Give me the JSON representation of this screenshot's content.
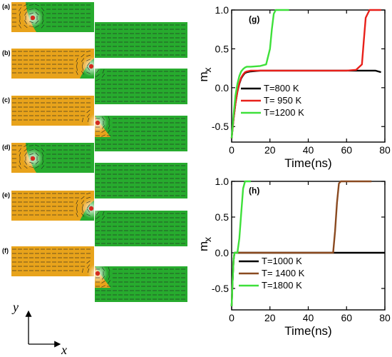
{
  "panels": [
    {
      "label": "(a)",
      "domain_wall": "left"
    },
    {
      "label": "(b)",
      "domain_wall": "step"
    },
    {
      "label": "(c)",
      "domain_wall": "lower"
    },
    {
      "label": "(d)",
      "domain_wall": "left"
    },
    {
      "label": "(e)",
      "domain_wall": "step"
    },
    {
      "label": "(f)",
      "domain_wall": "lower"
    }
  ],
  "coord_axes": {
    "x": "x",
    "y": "y"
  },
  "colors": {
    "left_domain": "#e8a31b",
    "right_domain": "#27ab2e",
    "core": "#d42a1f"
  },
  "chart_data": [
    {
      "type": "line",
      "panel_label": "(g)",
      "xlabel": "Time(ns)",
      "ylabel": "m",
      "ylabel_sub": "x",
      "xlim": [
        0,
        80
      ],
      "ylim": [
        -0.7,
        1.0
      ],
      "xticks": [
        0,
        20,
        40,
        60,
        80
      ],
      "yticks": [
        -0.5,
        0.0,
        0.5,
        1.0
      ],
      "ytick_labels": [
        "-0.5",
        "0.0",
        "0.5",
        "1.0"
      ],
      "legend": "bottom-left",
      "series": [
        {
          "name": "T=800 K",
          "color": "#000000",
          "x": [
            0,
            1,
            2,
            3,
            4,
            5,
            6,
            7,
            8,
            10,
            15,
            20,
            30,
            40,
            50,
            60,
            65,
            70,
            75,
            78
          ],
          "y": [
            -0.65,
            -0.4,
            -0.2,
            -0.05,
            0.05,
            0.12,
            0.16,
            0.19,
            0.2,
            0.21,
            0.22,
            0.22,
            0.22,
            0.22,
            0.22,
            0.22,
            0.22,
            0.22,
            0.22,
            0.2
          ]
        },
        {
          "name": "T= 950 K",
          "color": "#e8201a",
          "x": [
            0,
            1,
            2,
            3,
            4,
            5,
            6,
            7,
            8,
            10,
            15,
            20,
            30,
            40,
            50,
            60,
            65,
            68,
            69,
            70,
            72,
            74,
            78
          ],
          "y": [
            -0.65,
            -0.4,
            -0.2,
            -0.05,
            0.06,
            0.13,
            0.17,
            0.2,
            0.21,
            0.22,
            0.22,
            0.22,
            0.22,
            0.22,
            0.22,
            0.22,
            0.23,
            0.3,
            0.6,
            0.9,
            1.0,
            1.0,
            1.0
          ]
        },
        {
          "name": "T=1200 K",
          "color": "#3ee03a",
          "x": [
            0,
            1,
            2,
            3,
            4,
            5,
            6,
            7,
            8,
            10,
            15,
            18,
            20,
            21,
            22,
            23,
            24,
            26,
            30
          ],
          "y": [
            -0.65,
            -0.35,
            -0.1,
            0.05,
            0.15,
            0.21,
            0.24,
            0.26,
            0.27,
            0.27,
            0.28,
            0.3,
            0.5,
            0.75,
            0.95,
            1.0,
            1.0,
            1.0,
            1.0
          ]
        }
      ]
    },
    {
      "type": "line",
      "panel_label": "(h)",
      "xlabel": "Time(ns)",
      "ylabel": "m",
      "ylabel_sub": "x",
      "xlim": [
        0,
        80
      ],
      "ylim": [
        -0.8,
        1.0
      ],
      "xticks": [
        0,
        20,
        40,
        60,
        80
      ],
      "yticks": [
        -0.5,
        0.0,
        0.5,
        1.0
      ],
      "ytick_labels": [
        "-0.5",
        "0.0",
        "0.5",
        "1.0"
      ],
      "legend": "bottom-center",
      "series": [
        {
          "name": "T=1000 K",
          "color": "#000000",
          "x": [
            0,
            0.5,
            1,
            1.5,
            2,
            3,
            5,
            10,
            20,
            30,
            40,
            50,
            60,
            70,
            80
          ],
          "y": [
            -0.75,
            -0.4,
            -0.1,
            0.0,
            0.0,
            0.0,
            0.0,
            0.0,
            0.0,
            0.0,
            0.0,
            0.0,
            0.0,
            0.0,
            0.0
          ]
        },
        {
          "name": "T= 1400 K",
          "color": "#8a4a20",
          "x": [
            0,
            0.5,
            1,
            1.5,
            2,
            3,
            5,
            10,
            20,
            30,
            40,
            50,
            53,
            54,
            55,
            56,
            57,
            60,
            70,
            73
          ],
          "y": [
            -0.75,
            -0.4,
            -0.1,
            0.0,
            0.0,
            0.0,
            0.0,
            0.0,
            0.0,
            0.0,
            0.0,
            0.0,
            0.0,
            0.3,
            0.7,
            0.97,
            1.0,
            1.0,
            1.0,
            1.0
          ]
        },
        {
          "name": "T=1800 K",
          "color": "#3ee03a",
          "x": [
            0,
            0.5,
            1,
            1.5,
            2,
            3,
            4,
            5,
            6,
            7,
            8,
            9,
            10
          ],
          "y": [
            -0.75,
            -0.4,
            -0.1,
            0.0,
            0.0,
            0.0,
            0.2,
            0.55,
            0.9,
            1.0,
            1.0,
            1.0,
            1.0
          ]
        }
      ]
    }
  ]
}
